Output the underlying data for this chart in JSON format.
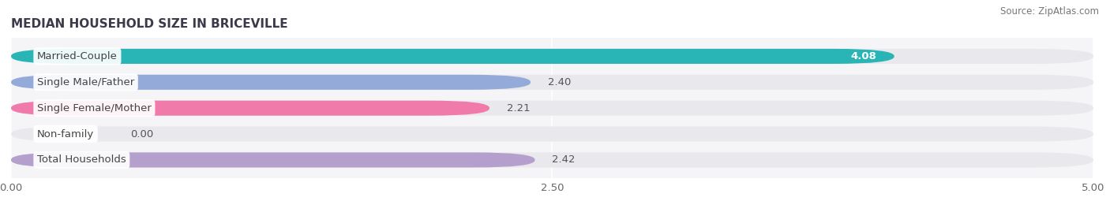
{
  "title": "MEDIAN HOUSEHOLD SIZE IN BRICEVILLE",
  "source": "Source: ZipAtlas.com",
  "categories": [
    "Married-Couple",
    "Single Male/Father",
    "Single Female/Mother",
    "Non-family",
    "Total Households"
  ],
  "values": [
    4.08,
    2.4,
    2.21,
    0.0,
    2.42
  ],
  "bar_colors": [
    "#29b5b5",
    "#94aad8",
    "#f07aaa",
    "#f5c99a",
    "#b59fcc"
  ],
  "bar_bg_color": "#e8e8ed",
  "background_color": "#ffffff",
  "plot_bg_color": "#f5f5f8",
  "xlim": [
    0,
    5.0
  ],
  "xticks": [
    0.0,
    2.5,
    5.0
  ],
  "xtick_labels": [
    "0.00",
    "2.50",
    "5.00"
  ],
  "value_labels": [
    "4.08",
    "2.40",
    "2.21",
    "0.00",
    "2.42"
  ],
  "bar_height": 0.58,
  "label_fontsize": 9.5,
  "title_fontsize": 11,
  "source_fontsize": 8.5,
  "value_inside": [
    true,
    false,
    false,
    false,
    false
  ]
}
